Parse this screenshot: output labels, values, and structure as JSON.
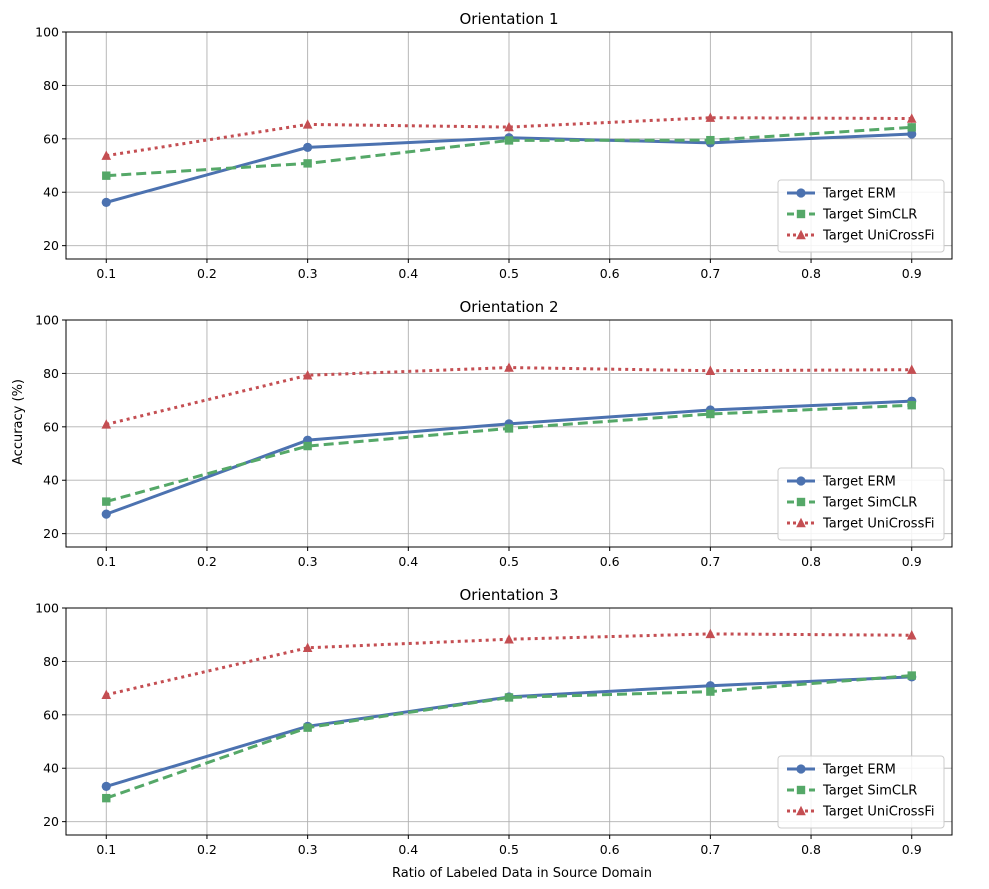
{
  "chart_data": {
    "type": "line",
    "xlabel": "Ratio of Labeled Data in Source Domain",
    "ylabel": "Accuracy (%)",
    "x": [
      0.1,
      0.3,
      0.5,
      0.7,
      0.9
    ],
    "xticks": [
      "0.1",
      "0.2",
      "0.3",
      "0.4",
      "0.5",
      "0.6",
      "0.7",
      "0.8",
      "0.9"
    ],
    "xlim": [
      0.06,
      0.94
    ],
    "yticks": [
      "20",
      "40",
      "60",
      "80",
      "100"
    ],
    "ylim": [
      15,
      100
    ],
    "grid": true,
    "legend_position": "lower-right",
    "series_styles": [
      {
        "name": "Target ERM",
        "color": "#4c72b0",
        "dash": "solid",
        "marker": "circle"
      },
      {
        "name": "Target SimCLR",
        "color": "#55a868",
        "dash": "dashed",
        "marker": "square"
      },
      {
        "name": "Target UniCrossFi",
        "color": "#c44e52",
        "dash": "dotted",
        "marker": "triangle"
      }
    ],
    "panels": [
      {
        "title": "Orientation 1",
        "series": [
          {
            "name": "Target ERM",
            "values": [
              36.2,
              56.8,
              60.4,
              58.5,
              61.8
            ]
          },
          {
            "name": "Target SimCLR",
            "values": [
              46.2,
              50.8,
              59.4,
              59.5,
              64.3
            ]
          },
          {
            "name": "Target UniCrossFi",
            "values": [
              53.7,
              65.4,
              64.4,
              67.9,
              67.6
            ]
          }
        ]
      },
      {
        "title": "Orientation 2",
        "series": [
          {
            "name": "Target ERM",
            "values": [
              27.3,
              55.0,
              61.1,
              66.3,
              69.6
            ]
          },
          {
            "name": "Target SimCLR",
            "values": [
              32.0,
              52.8,
              59.4,
              64.8,
              68.1
            ]
          },
          {
            "name": "Target UniCrossFi",
            "values": [
              60.9,
              79.3,
              82.2,
              81.0,
              81.4
            ]
          }
        ]
      },
      {
        "title": "Orientation 3",
        "series": [
          {
            "name": "Target ERM",
            "values": [
              33.2,
              55.7,
              66.7,
              70.9,
              74.2
            ]
          },
          {
            "name": "Target SimCLR",
            "values": [
              28.8,
              55.2,
              66.5,
              68.7,
              74.7
            ]
          },
          {
            "name": "Target UniCrossFi",
            "values": [
              67.5,
              85.1,
              88.3,
              90.3,
              89.8
            ]
          }
        ]
      }
    ]
  }
}
